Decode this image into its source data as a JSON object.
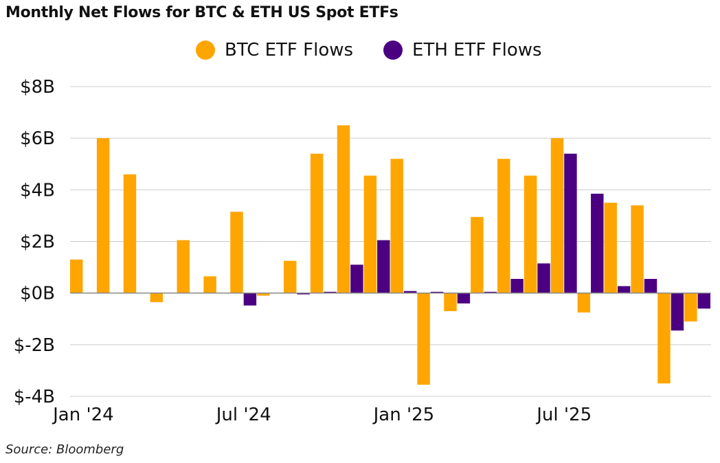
{
  "title": "Monthly Net Flows for BTC & ETH US Spot ETFs",
  "source": "Source: Bloomberg",
  "colors": {
    "btc": "#FFA500",
    "eth": "#4B0082",
    "grid": "#cccccc",
    "zero": "#888888"
  },
  "chart_data": {
    "type": "bar",
    "title": "Monthly Net Flows for BTC & ETH US Spot ETFs",
    "xlabel": "",
    "ylabel": "",
    "ylim": [
      -4,
      8
    ],
    "yticks": [
      8,
      6,
      4,
      2,
      0,
      -2,
      -4
    ],
    "ytick_labels": [
      "$8B",
      "$6B",
      "$4B",
      "$2B",
      "$0B",
      "$-2B",
      "$-4B"
    ],
    "xtick_labels": [
      {
        "label": "Jan '24",
        "index": 0
      },
      {
        "label": "Jul '24",
        "index": 6
      },
      {
        "label": "Jan '25",
        "index": 12
      },
      {
        "label": "Jul '25",
        "index": 18
      }
    ],
    "categories": [
      "Jan 2024",
      "Feb 2024",
      "Mar 2024",
      "Apr 2024",
      "May 2024",
      "Jun 2024",
      "Jul 2024",
      "Aug 2024",
      "Sep 2024",
      "Oct 2024",
      "Nov 2024",
      "Dec 2024",
      "Jan 2025",
      "Feb 2025",
      "Mar 2025",
      "Apr 2025",
      "May 2025",
      "Jun 2025",
      "Jul 2025",
      "Aug 2025",
      "Sep 2025",
      "Oct 2025",
      "Nov 2025",
      "Dec 2025"
    ],
    "series": [
      {
        "name": "BTC ETF Flows",
        "values": [
          1.3,
          6.0,
          4.6,
          -0.35,
          2.05,
          0.65,
          3.15,
          -0.1,
          1.25,
          5.4,
          6.5,
          4.55,
          5.2,
          -3.55,
          -0.7,
          2.95,
          5.2,
          4.55,
          6.0,
          -0.75,
          3.5,
          3.4,
          -3.5,
          -1.1
        ]
      },
      {
        "name": "ETH ETF Flows",
        "values": [
          0,
          0,
          0,
          0,
          0,
          0,
          -0.48,
          0,
          -0.05,
          0.05,
          1.1,
          2.05,
          0.08,
          0.05,
          -0.4,
          0.05,
          0.55,
          1.15,
          5.4,
          3.85,
          0.27,
          0.55,
          -1.45,
          -0.6
        ]
      }
    ]
  }
}
